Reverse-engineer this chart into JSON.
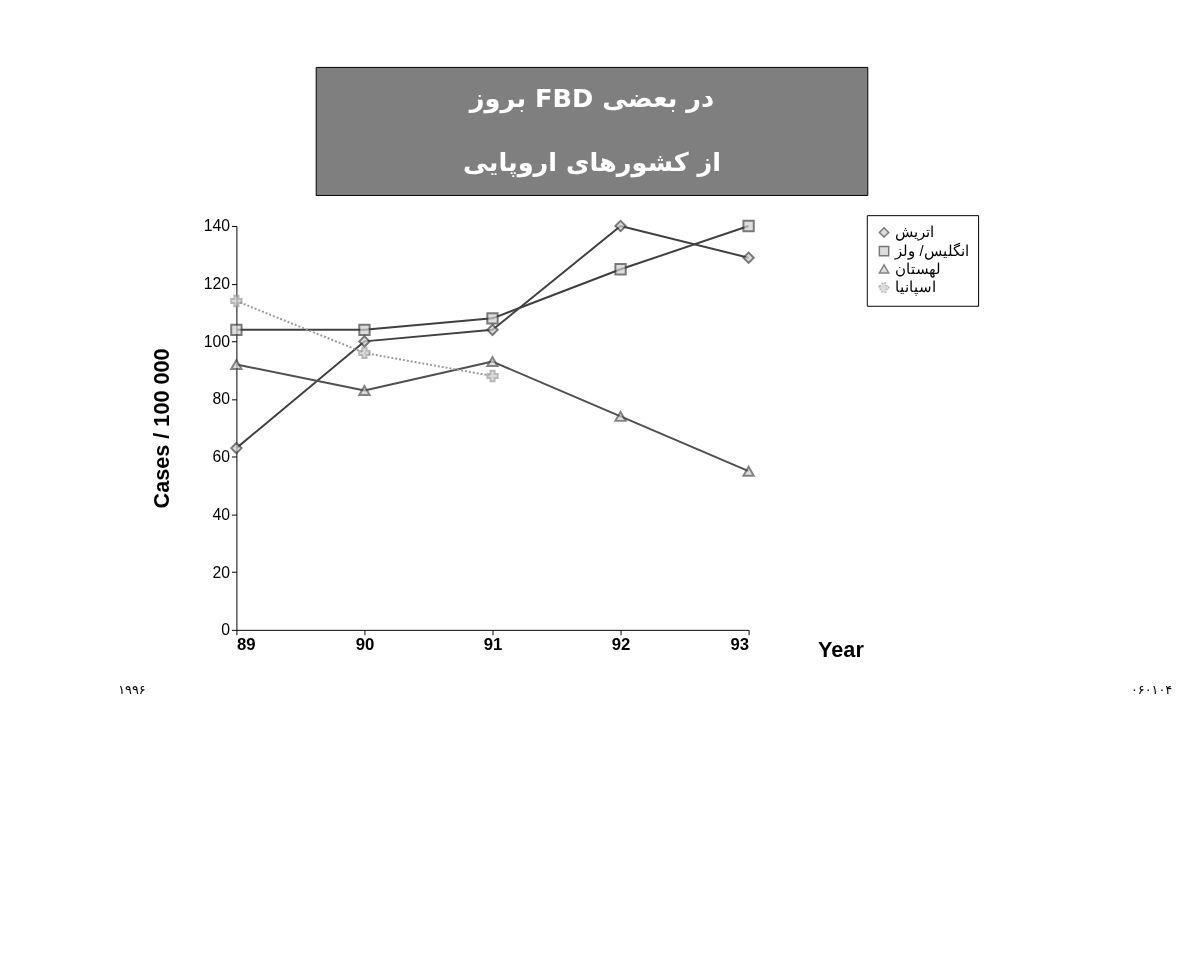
{
  "chart_data": {
    "type": "line",
    "title": "بروز FBD در بعضی\nاز کشورهای اروپایی",
    "xlabel": "Year",
    "ylabel": "Cases / 100 000",
    "x": [
      89,
      90,
      91,
      92,
      93
    ],
    "xlim": [
      89,
      93
    ],
    "xticks": [
      89,
      90,
      91,
      92,
      93
    ],
    "ylim": [
      0,
      140
    ],
    "yticks": [
      0,
      20,
      40,
      60,
      80,
      100,
      120,
      140
    ],
    "grid": false,
    "legend": "right",
    "series": [
      {
        "name": "اتریش",
        "color": "#404040",
        "marker": "diamond",
        "line_style": "solid",
        "values": [
          63,
          100,
          104,
          140,
          129
        ]
      },
      {
        "name": "انگلیس/ ولز",
        "color": "#404040",
        "marker": "square",
        "line_style": "solid",
        "values": [
          104,
          104,
          108,
          125,
          140
        ]
      },
      {
        "name": "لهستان",
        "color": "#505050",
        "marker": "triangle",
        "line_style": "solid",
        "values": [
          92,
          83,
          93,
          74,
          55
        ]
      },
      {
        "name": "اسپانیا",
        "color": "#9a9a9a",
        "marker": "cross",
        "line_style": "dotted",
        "values": [
          114,
          96,
          88,
          null,
          null
        ]
      }
    ],
    "annotations": [
      "۱۹۹۶",
      "۰۶۰۱۰۴"
    ]
  }
}
